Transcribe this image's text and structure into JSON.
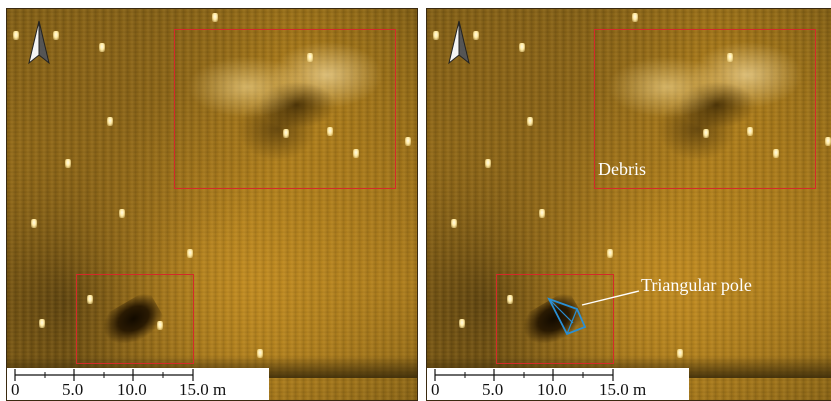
{
  "panels": [
    {
      "id": "original",
      "labels": {
        "debris": "",
        "pole": ""
      },
      "scale_bar": {
        "ticks": [
          "0",
          "5.0",
          "10.0",
          "15.0 m"
        ]
      }
    },
    {
      "id": "annotated",
      "labels": {
        "debris": "Debris",
        "pole": "Triangular pole"
      },
      "scale_bar": {
        "ticks": [
          "0",
          "5.0",
          "10.0",
          "15.0 m"
        ]
      }
    }
  ],
  "colors": {
    "roi_box": "#d42a2a",
    "pole_outline": "#2a8fd4",
    "label_text": "#ffffff",
    "sonar_base": "#a97a1c"
  },
  "icons": {
    "north_arrow": "north-arrow-icon"
  }
}
